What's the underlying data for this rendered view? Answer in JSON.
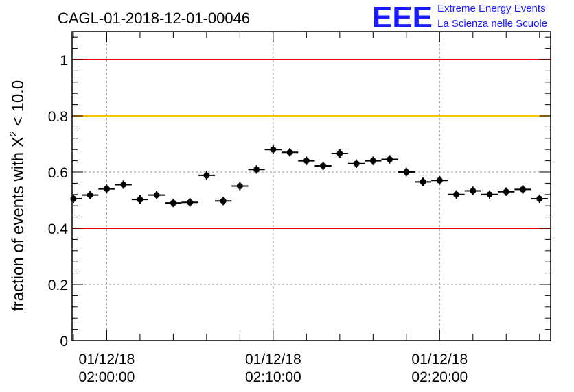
{
  "title": "CAGL-01-2018-12-01-00046",
  "logo": {
    "mark": "EEE",
    "line1": "Extreme Energy Events",
    "line2": "La Scienza nelle Scuole",
    "color": "#1a1aff"
  },
  "chart_data": {
    "type": "scatter",
    "title": "CAGL-01-2018-12-01-00046",
    "ylabel_prefix": "fraction of events with ",
    "ylabel_chi": "X",
    "ylabel_sup": "2",
    "ylabel_suffix": " < 10.0",
    "xlabel": "",
    "x_unit": "minutes",
    "xlim": [
      -2.08,
      26.67
    ],
    "ylim": [
      0,
      1.1
    ],
    "grid": true,
    "yticks": [
      {
        "value": 0,
        "label": "0"
      },
      {
        "value": 0.2,
        "label": "0.2"
      },
      {
        "value": 0.4,
        "label": "0.4"
      },
      {
        "value": 0.6,
        "label": "0.6"
      },
      {
        "value": 0.8,
        "label": "0.8"
      },
      {
        "value": 1.0,
        "label": "1"
      }
    ],
    "xticks": [
      {
        "value": 0,
        "date": "01/12/18",
        "time": "02:00:00"
      },
      {
        "value": 10,
        "date": "01/12/18",
        "time": "02:10:00"
      },
      {
        "value": 20,
        "date": "01/12/18",
        "time": "02:20:00"
      }
    ],
    "reference_lines": [
      {
        "y": 1.0,
        "color": "#e60000"
      },
      {
        "y": 0.8,
        "color": "#ffc000"
      },
      {
        "y": 0.4,
        "color": "#e60000"
      }
    ],
    "bin_width": 1.0,
    "x": [
      -2,
      -1,
      0,
      1,
      2,
      3,
      4,
      5,
      6,
      7,
      8,
      9,
      10,
      11,
      12,
      13,
      14,
      15,
      16,
      17,
      18,
      19,
      20,
      21,
      22,
      23,
      24,
      25,
      26
    ],
    "values": [
      0.505,
      0.518,
      0.54,
      0.555,
      0.502,
      0.518,
      0.49,
      0.492,
      0.588,
      0.497,
      0.55,
      0.609,
      0.68,
      0.67,
      0.64,
      0.622,
      0.666,
      0.63,
      0.64,
      0.645,
      0.6,
      0.565,
      0.57,
      0.52,
      0.533,
      0.52,
      0.53,
      0.538,
      0.505
    ],
    "errors": [
      0.015,
      0.015,
      0.015,
      0.015,
      0.015,
      0.015,
      0.015,
      0.015,
      0.015,
      0.015,
      0.015,
      0.015,
      0.015,
      0.015,
      0.015,
      0.015,
      0.015,
      0.015,
      0.015,
      0.015,
      0.015,
      0.015,
      0.015,
      0.015,
      0.015,
      0.015,
      0.015,
      0.015,
      0.015
    ]
  }
}
